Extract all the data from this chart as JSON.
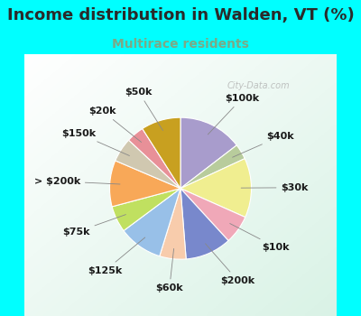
{
  "title": "Income distribution in Walden, VT (%)",
  "subtitle": "Multirace residents",
  "title_color": "#2a2a2a",
  "subtitle_color": "#7aaa88",
  "background_color": "#00ffff",
  "watermark": "City-Data.com",
  "labels": [
    "$100k",
    "$40k",
    "$30k",
    "$10k",
    "$200k",
    "$60k",
    "$125k",
    "$75k",
    "> $200k",
    "$150k",
    "$20k",
    "$50k"
  ],
  "sizes": [
    14.5,
    3.5,
    13.5,
    6.5,
    10.5,
    6.0,
    10.0,
    6.0,
    10.5,
    5.5,
    4.0,
    9.0
  ],
  "colors": [
    "#a89ccc",
    "#b8cc9c",
    "#f0ee90",
    "#f0a8b8",
    "#7888cc",
    "#f8ccac",
    "#98c0e8",
    "#c0e060",
    "#f8a858",
    "#d0c8b0",
    "#e89098",
    "#c8a020"
  ],
  "label_fontsize": 8,
  "title_fontsize": 13,
  "subtitle_fontsize": 10
}
